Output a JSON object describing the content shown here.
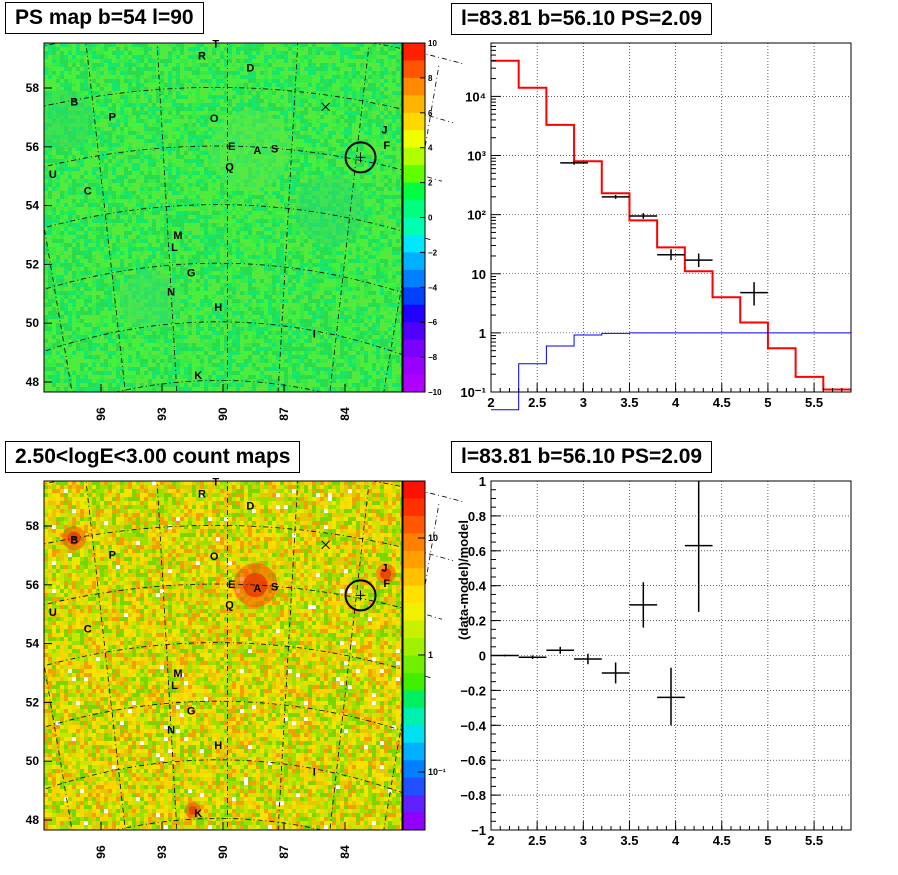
{
  "panels": {
    "top_left_title": "PS map b=54 l=90",
    "top_right_title": "l=83.81 b=56.10 PS=2.09",
    "bottom_left_title": "2.50<logE<3.00 count maps",
    "bottom_right_title": "l=83.81 b=56.10 PS=2.09"
  },
  "source_labels": [
    {
      "t": "T",
      "l": 90.5,
      "b": 59.5
    },
    {
      "t": "R",
      "l": 91.1,
      "b": 59.1
    },
    {
      "t": "D",
      "l": 89.0,
      "b": 58.7
    },
    {
      "t": "B",
      "l": 96.8,
      "b": 57.95
    },
    {
      "t": "P",
      "l": 95.2,
      "b": 57.25
    },
    {
      "t": "O",
      "l": 90.6,
      "b": 56.95
    },
    {
      "t": "J",
      "l": 82.9,
      "b": 57.2
    },
    {
      "t": "F",
      "l": 82.7,
      "b": 56.7
    },
    {
      "t": "E",
      "l": 89.8,
      "b": 56.0
    },
    {
      "t": "A",
      "l": 88.6,
      "b": 55.9
    },
    {
      "t": "S",
      "l": 87.8,
      "b": 56.0
    },
    {
      "t": "U",
      "l": 98.2,
      "b": 55.7
    },
    {
      "t": "Q",
      "l": 89.9,
      "b": 55.3
    },
    {
      "t": "C",
      "l": 96.7,
      "b": 54.9
    },
    {
      "t": "M",
      "l": 92.5,
      "b": 53.0
    },
    {
      "t": "L",
      "l": 92.7,
      "b": 52.6
    },
    {
      "t": "G",
      "l": 91.9,
      "b": 51.7
    },
    {
      "t": "N",
      "l": 93.0,
      "b": 51.1
    },
    {
      "t": "H",
      "l": 90.5,
      "b": 50.5
    },
    {
      "t": "I",
      "l": 85.2,
      "b": 49.9
    },
    {
      "t": "K",
      "l": 91.7,
      "b": 48.2
    }
  ],
  "map_axes": {
    "x_ticks": [
      "96",
      "93",
      "90",
      "87",
      "84"
    ],
    "y_ticks": [
      "58",
      "56",
      "54",
      "52",
      "50",
      "48"
    ]
  },
  "ps_colorbar": {
    "ticks": [
      "10",
      "8",
      "6",
      "4",
      "2",
      "0",
      "−2",
      "−4",
      "−6",
      "−8",
      "−10"
    ]
  },
  "count_colorbar": {
    "ticks": [
      "10",
      "1",
      "10⁻¹"
    ]
  },
  "chart_data": [
    {
      "type": "line",
      "title": "l=83.81 b=56.10 PS=2.09",
      "xlabel": "",
      "ylabel": "",
      "xlim": [
        2.0,
        5.9
      ],
      "ylim": [
        0.1,
        80000
      ],
      "yscale": "log",
      "x_ticks": [
        "2",
        "2.5",
        "3",
        "3.5",
        "4",
        "4.5",
        "5",
        "5.5"
      ],
      "y_ticks": [
        "10⁻¹",
        "1",
        "10",
        "10²",
        "10³",
        "10⁴"
      ],
      "series": [
        {
          "style": "red-step",
          "edges": [
            2.0,
            2.3,
            2.6,
            2.9,
            3.2,
            3.5,
            3.8,
            4.1,
            4.4,
            4.7,
            5.0,
            5.3,
            5.6,
            5.9
          ],
          "values": [
            40000,
            14000,
            3300,
            800,
            230,
            80,
            28,
            11,
            4,
            1.5,
            0.55,
            0.18,
            0.11
          ]
        },
        {
          "style": "blue-step",
          "edges": [
            2.0,
            2.3,
            2.6,
            2.9,
            3.2,
            3.5,
            5.9
          ],
          "values": [
            0.05,
            0.3,
            0.6,
            0.92,
            0.98,
            1.0
          ]
        },
        {
          "style": "black-points",
          "points": [
            {
              "x": 2.9,
              "y": 750,
              "xerr": 0.15,
              "ylo": 700,
              "yhi": 800
            },
            {
              "x": 3.35,
              "y": 200,
              "xerr": 0.15,
              "ylo": 185,
              "yhi": 215
            },
            {
              "x": 3.65,
              "y": 95,
              "xerr": 0.15,
              "ylo": 85,
              "yhi": 106
            },
            {
              "x": 3.95,
              "y": 21,
              "xerr": 0.15,
              "ylo": 17,
              "yhi": 26
            },
            {
              "x": 4.25,
              "y": 17,
              "xerr": 0.15,
              "ylo": 13,
              "yhi": 22
            },
            {
              "x": 4.85,
              "y": 4.8,
              "xerr": 0.15,
              "ylo": 2.9,
              "yhi": 7.2
            }
          ]
        }
      ]
    },
    {
      "type": "scatter",
      "title": "l=83.81 b=56.10 PS=2.09",
      "xlabel": "",
      "ylabel": "(data-model)/model",
      "xlim": [
        2.0,
        5.9
      ],
      "ylim": [
        -1.0,
        1.0
      ],
      "x_ticks": [
        "2",
        "2.5",
        "3",
        "3.5",
        "4",
        "4.5",
        "5",
        "5.5"
      ],
      "y_ticks": [
        "1",
        "0.8",
        "0.6",
        "0.4",
        "0.2",
        "0",
        "−0.2",
        "−0.4",
        "−0.6",
        "−0.8",
        "−1"
      ],
      "points": [
        {
          "x": 2.15,
          "y": 0.0,
          "xerr": 0.15,
          "ylo": -0.005,
          "yhi": 0.005
        },
        {
          "x": 2.45,
          "y": -0.01,
          "xerr": 0.15,
          "ylo": -0.02,
          "yhi": 0.0
        },
        {
          "x": 2.75,
          "y": 0.03,
          "xerr": 0.15,
          "ylo": 0.01,
          "yhi": 0.05
        },
        {
          "x": 3.05,
          "y": -0.02,
          "xerr": 0.15,
          "ylo": -0.05,
          "yhi": 0.01
        },
        {
          "x": 3.35,
          "y": -0.1,
          "xerr": 0.15,
          "ylo": -0.16,
          "yhi": -0.04
        },
        {
          "x": 3.65,
          "y": 0.29,
          "xerr": 0.15,
          "ylo": 0.16,
          "yhi": 0.42
        },
        {
          "x": 3.95,
          "y": -0.24,
          "xerr": 0.15,
          "ylo": -0.4,
          "yhi": -0.07
        },
        {
          "x": 4.25,
          "y": 0.63,
          "xerr": 0.15,
          "ylo": 0.25,
          "yhi": 1.0
        }
      ]
    }
  ]
}
